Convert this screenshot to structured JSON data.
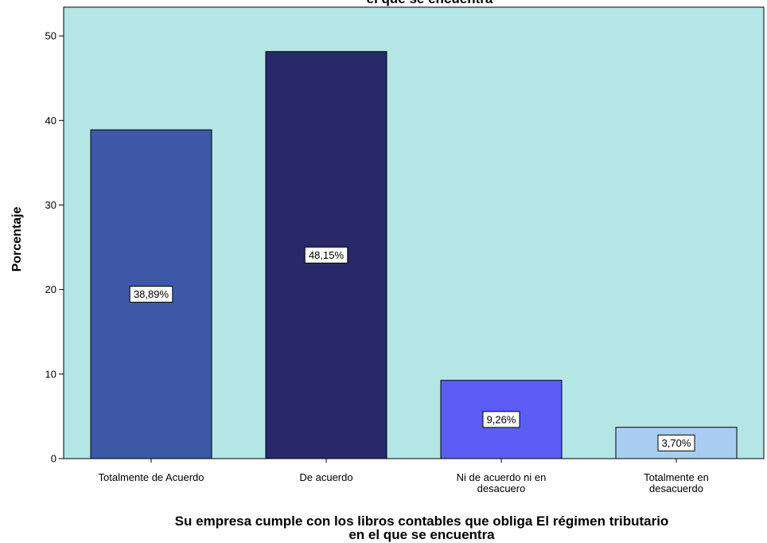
{
  "chart_data": {
    "type": "bar",
    "title": "el que se encuentra",
    "categories": [
      [
        "Totalmente de Acuerdo"
      ],
      [
        "De acuerdo"
      ],
      [
        "Ni de acuerdo ni en",
        "desacuero"
      ],
      [
        "Totalmente en",
        "desacuerdo"
      ]
    ],
    "values": [
      38.89,
      48.15,
      9.26,
      3.7
    ],
    "data_labels": [
      "38,89%",
      "48,15%",
      "9,26%",
      "3,70%"
    ],
    "bar_colors": [
      "#3e58a8",
      "#27296b",
      "#5b5ef5",
      "#a9cdf0"
    ],
    "plot_background": "#b4e6e6",
    "ylabel": "Porcentaje",
    "xlabel": [
      "Su empresa cumple con los libros contables que obliga El régimen tributario",
      "en el que se encuentra"
    ],
    "ylim": [
      0,
      53.4
    ],
    "yticks": [
      0,
      10,
      20,
      30,
      40,
      50
    ],
    "grid": false,
    "legend": "none"
  }
}
